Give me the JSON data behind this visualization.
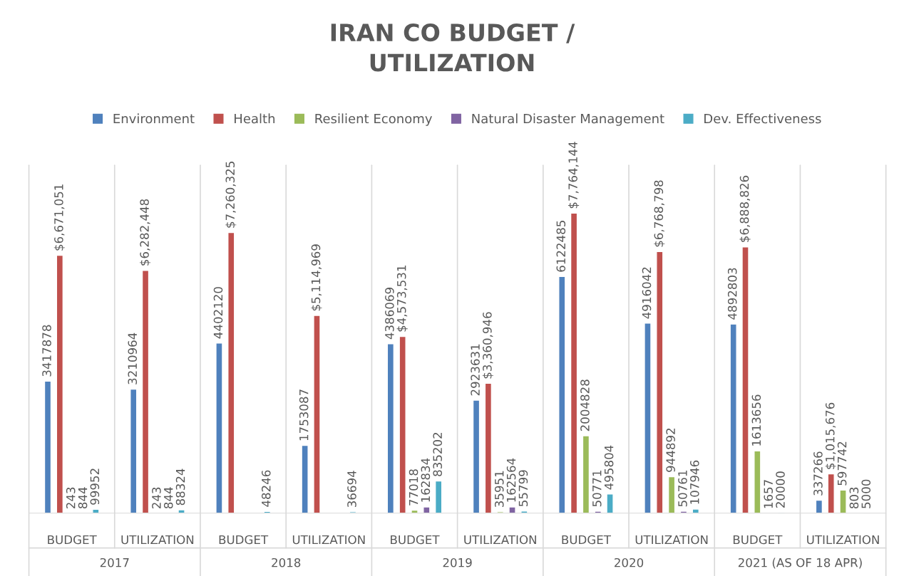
{
  "chart_data": {
    "type": "bar",
    "title": "IRAN CO BUDGET /\nUTILIZATION",
    "categories": [
      "BUDGET",
      "UTILIZATION",
      "BUDGET",
      "UTILIZATION",
      "BUDGET",
      "UTILIZATION",
      "BUDGET",
      "UTILIZATION",
      "BUDGET",
      "UTILIZATION"
    ],
    "annotations": [
      "2017",
      "2018",
      "2019",
      "2020",
      "2021 (AS OF 18 APR)"
    ],
    "series": [
      {
        "name": "Environment",
        "color": "#4f81bd",
        "values": [
          3417878,
          3210964,
          4402120,
          1753087,
          4386069,
          2923631,
          6122485,
          4916042,
          4892803,
          337266
        ]
      },
      {
        "name": "Health",
        "color": "#c0504d",
        "values": [
          6671051,
          6282448,
          7260325,
          5114969,
          4573531,
          3360946,
          7764144,
          6768798,
          6888826,
          1015676
        ],
        "value_labels": [
          "$6,671,051",
          "$6,282,448",
          "$7,260,325",
          "$5,114,969",
          "$4,573,531",
          "$3,360,946",
          "$7,764,144",
          "$6,768,798",
          "$6,888,826",
          "$1,015,676"
        ]
      },
      {
        "name": "Resilient Economy",
        "color": "#9bbb59",
        "values": [
          243,
          243,
          null,
          null,
          77018,
          35951,
          2004828,
          944892,
          1613656,
          597742
        ]
      },
      {
        "name": "Natural Disaster Management",
        "color": "#8064a2",
        "values": [
          844,
          844,
          null,
          null,
          162834,
          162564,
          50771,
          50761,
          1657,
          803
        ]
      },
      {
        "name": "Dev. Effectiveness",
        "color": "#4bacc6",
        "values": [
          99952,
          88324,
          48246,
          36694,
          835202,
          55799,
          495804,
          107946,
          20000,
          5000
        ]
      }
    ],
    "ylim": [
      0,
      9000000
    ],
    "tick_labels": "x",
    "data_labels": true,
    "legend": "top",
    "grid": "x"
  }
}
